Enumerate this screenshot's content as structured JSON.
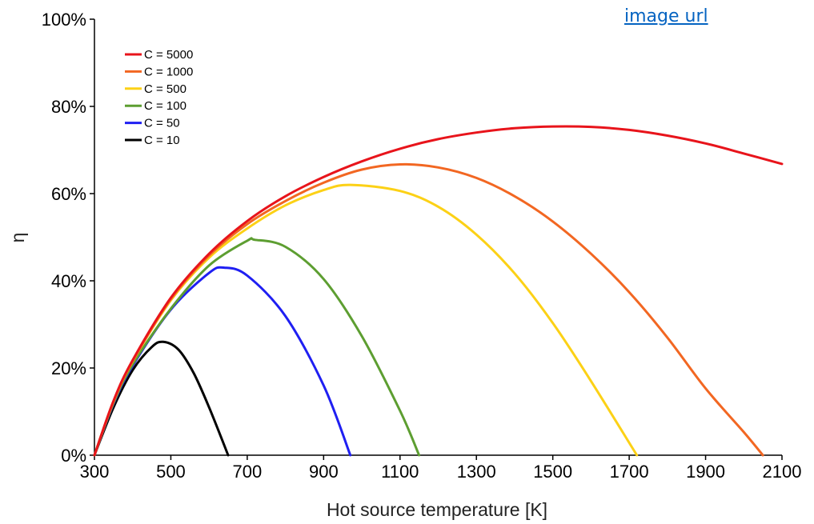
{
  "link": {
    "text": "image url"
  },
  "chart_data": {
    "type": "line",
    "xlabel": "Hot source temperature [K]",
    "ylabel": "η",
    "xlim": [
      300,
      2100
    ],
    "ylim": [
      0,
      100
    ],
    "xticks": [
      "300",
      "500",
      "700",
      "900",
      "1100",
      "1300",
      "1500",
      "1700",
      "1900",
      "2100"
    ],
    "yticks": [
      "0%",
      "20%",
      "40%",
      "60%",
      "80%",
      "100%"
    ],
    "grid": false,
    "legend_position": "top-left",
    "series": [
      {
        "name": "C = 5000",
        "color": "#e8141b",
        "x": [
          300,
          350,
          400,
          500,
          600,
          700,
          800,
          900,
          1000,
          1100,
          1200,
          1300,
          1400,
          1500,
          1600,
          1700,
          1800,
          1900,
          2000,
          2100
        ],
        "y": [
          0,
          12.5,
          21.8,
          36.1,
          46.2,
          53.7,
          59.4,
          63.8,
          67.4,
          70.3,
          72.5,
          74.0,
          75.0,
          75.4,
          75.3,
          74.6,
          73.3,
          71.5,
          69.2,
          66.8
        ]
      },
      {
        "name": "C = 1000",
        "color": "#f26722",
        "x": [
          300,
          350,
          400,
          500,
          600,
          700,
          800,
          900,
          1000,
          1100,
          1200,
          1300,
          1400,
          1500,
          1600,
          1700,
          1800,
          1900,
          2000,
          2050
        ],
        "y": [
          0,
          12.4,
          21.6,
          35.8,
          45.8,
          53.0,
          58.3,
          62.5,
          65.5,
          66.7,
          66.0,
          63.6,
          59.4,
          53.6,
          46.2,
          37.4,
          27.0,
          15.3,
          5.3,
          0
        ]
      },
      {
        "name": "C = 500",
        "color": "#fcd116",
        "x": [
          300,
          350,
          400,
          500,
          600,
          700,
          800,
          900,
          970,
          1100,
          1200,
          1300,
          1400,
          1500,
          1600,
          1720
        ],
        "y": [
          0,
          12.3,
          21.5,
          35.5,
          45.3,
          52.0,
          57.3,
          60.8,
          62.0,
          60.6,
          57.0,
          50.6,
          41.7,
          30.3,
          17.0,
          0
        ]
      },
      {
        "name": "C = 100",
        "color": "#5d9e31",
        "x": [
          300,
          350,
          400,
          500,
          600,
          700,
          720,
          800,
          900,
          1000,
          1100,
          1150
        ],
        "y": [
          0,
          12.0,
          20.8,
          33.6,
          43.5,
          49.2,
          49.4,
          47.8,
          40.4,
          27.3,
          10.2,
          0
        ]
      },
      {
        "name": "C = 50",
        "color": "#1f1ff2",
        "x": [
          300,
          350,
          400,
          500,
          600,
          640,
          700,
          800,
          900,
          970
        ],
        "y": [
          0,
          11.8,
          20.5,
          33.4,
          41.8,
          43.0,
          41.2,
          31.9,
          16.0,
          0
        ]
      },
      {
        "name": "C = 10",
        "color": "#000000",
        "x": [
          300,
          350,
          400,
          450,
          480,
          520,
          560,
          600,
          650
        ],
        "y": [
          0,
          11.0,
          19.5,
          24.8,
          26.0,
          24.2,
          18.8,
          11.0,
          0
        ]
      }
    ]
  }
}
